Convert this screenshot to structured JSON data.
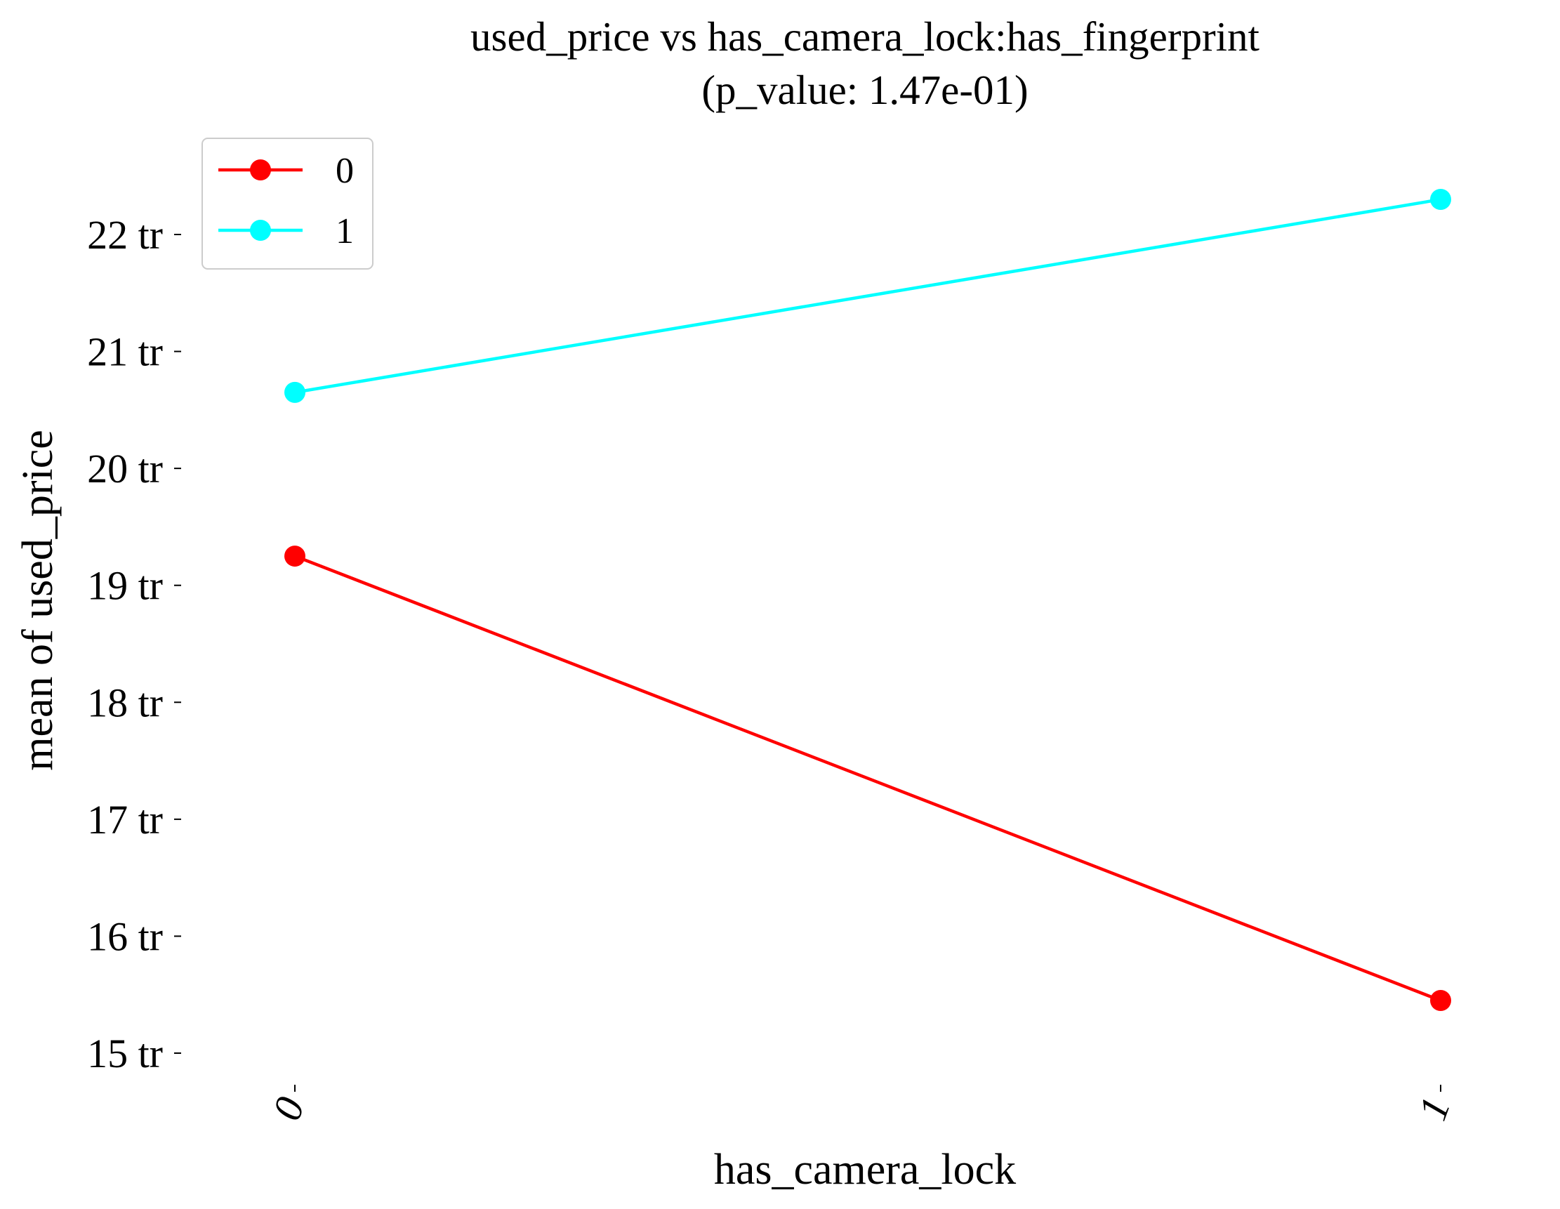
{
  "chart_data": {
    "type": "line",
    "title": "used_price vs has_camera_lock:has_fingerprint",
    "subtitle": "(p_value: 1.47e-01)",
    "xlabel": "has_camera_lock",
    "ylabel": "mean of used_price",
    "categories": [
      "0",
      "1"
    ],
    "y_ticks": [
      15,
      16,
      17,
      18,
      19,
      20,
      21,
      22
    ],
    "y_tick_labels": [
      "15 tr",
      "16 tr",
      "17 tr",
      "18 tr",
      "19 tr",
      "20 tr",
      "21 tr",
      "22 tr"
    ],
    "ylim": [
      14.75,
      22.7
    ],
    "grid": false,
    "legend_position": "top-left",
    "series": [
      {
        "name": "0",
        "color": "#ff0000",
        "values": [
          19.25,
          15.45
        ]
      },
      {
        "name": "1",
        "color": "#00ffff",
        "values": [
          20.65,
          22.3
        ]
      }
    ]
  }
}
